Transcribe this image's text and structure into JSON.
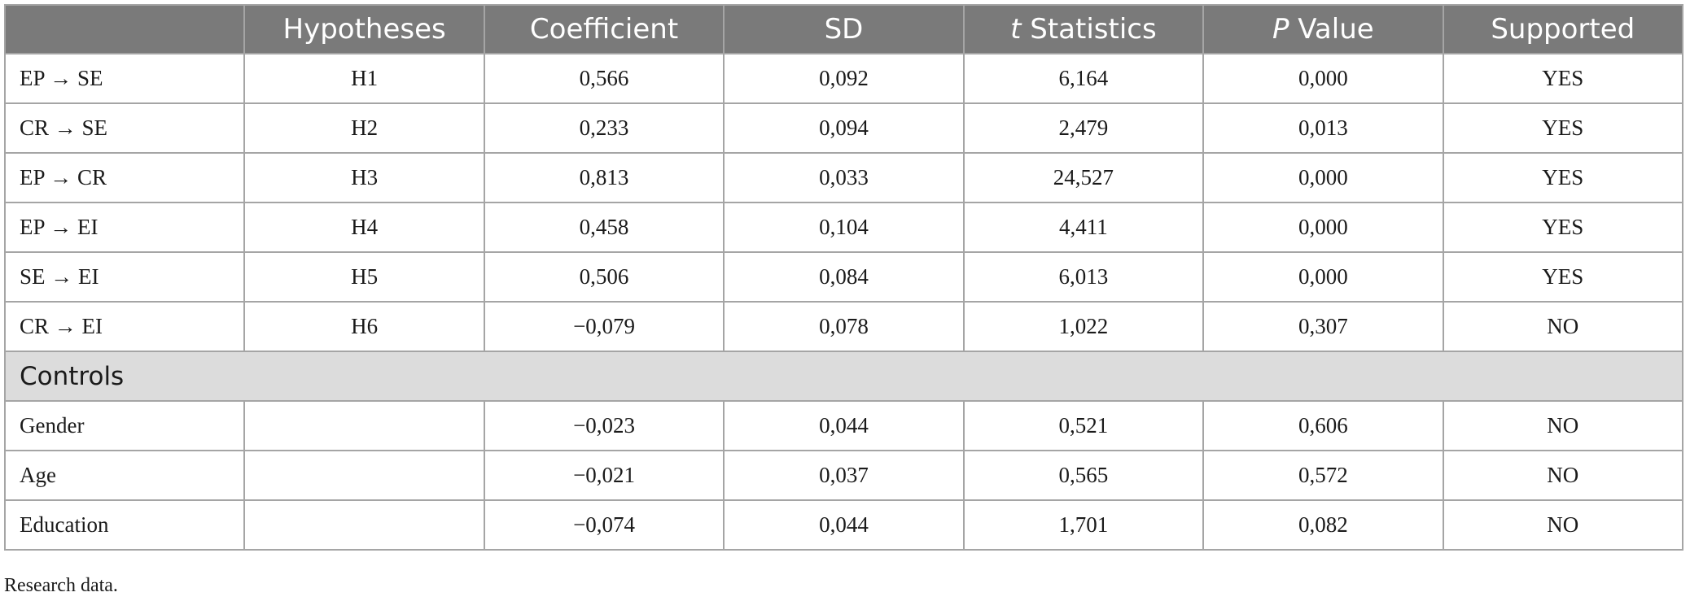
{
  "table": {
    "headers": {
      "blank": "",
      "hypotheses": "Hypotheses",
      "coefficient": "Coefficient",
      "sd": "SD",
      "t_statistics_italic": "t",
      "t_statistics_rest": " Statistics",
      "p_value_italic": "P",
      "p_value_rest": " Value",
      "supported": "Supported"
    },
    "rows": [
      {
        "path": "EP → SE",
        "hypothesis": "H1",
        "coefficient": "0,566",
        "sd": "0,092",
        "t": "6,164",
        "p": "0,000",
        "supported": "YES"
      },
      {
        "path": "CR → SE",
        "hypothesis": "H2",
        "coefficient": "0,233",
        "sd": "0,094",
        "t": "2,479",
        "p": "0,013",
        "supported": "YES"
      },
      {
        "path": "EP → CR",
        "hypothesis": "H3",
        "coefficient": "0,813",
        "sd": "0,033",
        "t": "24,527",
        "p": "0,000",
        "supported": "YES"
      },
      {
        "path": "EP → EI",
        "hypothesis": "H4",
        "coefficient": "0,458",
        "sd": "0,104",
        "t": "4,411",
        "p": "0,000",
        "supported": "YES"
      },
      {
        "path": "SE → EI",
        "hypothesis": "H5",
        "coefficient": "0,506",
        "sd": "0,084",
        "t": "6,013",
        "p": "0,000",
        "supported": "YES"
      },
      {
        "path": "CR → EI",
        "hypothesis": "H6",
        "coefficient": "−0,079",
        "sd": "0,078",
        "t": "1,022",
        "p": "0,307",
        "supported": "NO"
      }
    ],
    "section_label": "Controls",
    "control_rows": [
      {
        "path": "Gender",
        "hypothesis": "",
        "coefficient": "−0,023",
        "sd": "0,044",
        "t": "0,521",
        "p": "0,606",
        "supported": "NO"
      },
      {
        "path": "Age",
        "hypothesis": "",
        "coefficient": "−0,021",
        "sd": "0,037",
        "t": "0,565",
        "p": "0,572",
        "supported": "NO"
      },
      {
        "path": "Education",
        "hypothesis": "",
        "coefficient": "−0,074",
        "sd": "0,044",
        "t": "1,701",
        "p": "0,082",
        "supported": "NO"
      }
    ]
  },
  "footnote": "Research data.",
  "colors": {
    "header_bg": "#7a7a7a",
    "section_bg": "#dcdcdc",
    "border": "#a5a5a5"
  }
}
